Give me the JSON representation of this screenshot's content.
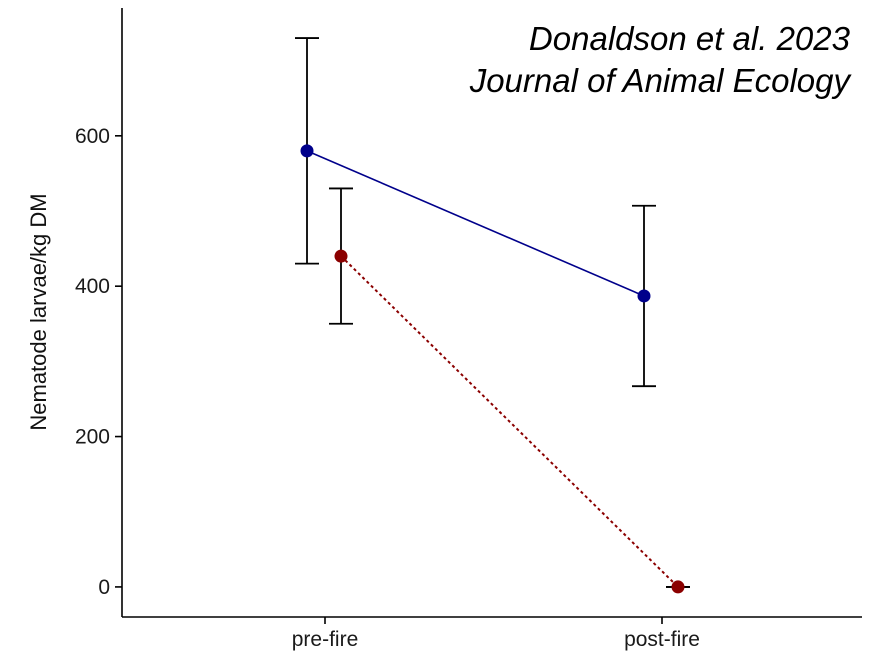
{
  "chart_data": {
    "type": "line",
    "categories": [
      "pre-fire",
      "post-fire"
    ],
    "ylabel": "Nematode larvae/kg DM",
    "ylim": [
      -40,
      770
    ],
    "yticks": [
      0,
      200,
      400,
      600
    ],
    "ytick_labels": [
      "0",
      "200",
      "400",
      "600"
    ],
    "grid": false,
    "annotation": {
      "line1": "Donaldson et al. 2023",
      "line2": "Journal of Animal Ecology"
    },
    "series": [
      {
        "color": "#00008B",
        "line_style": "solid",
        "offset": "left",
        "values": [
          580,
          387
        ],
        "error_low": [
          430,
          267
        ],
        "error_high": [
          730,
          507
        ]
      },
      {
        "color": "#8B0000",
        "line_style": "dotted",
        "offset": "right",
        "values": [
          440,
          0
        ],
        "error_low": [
          350,
          0
        ],
        "error_high": [
          530,
          0
        ]
      }
    ]
  }
}
